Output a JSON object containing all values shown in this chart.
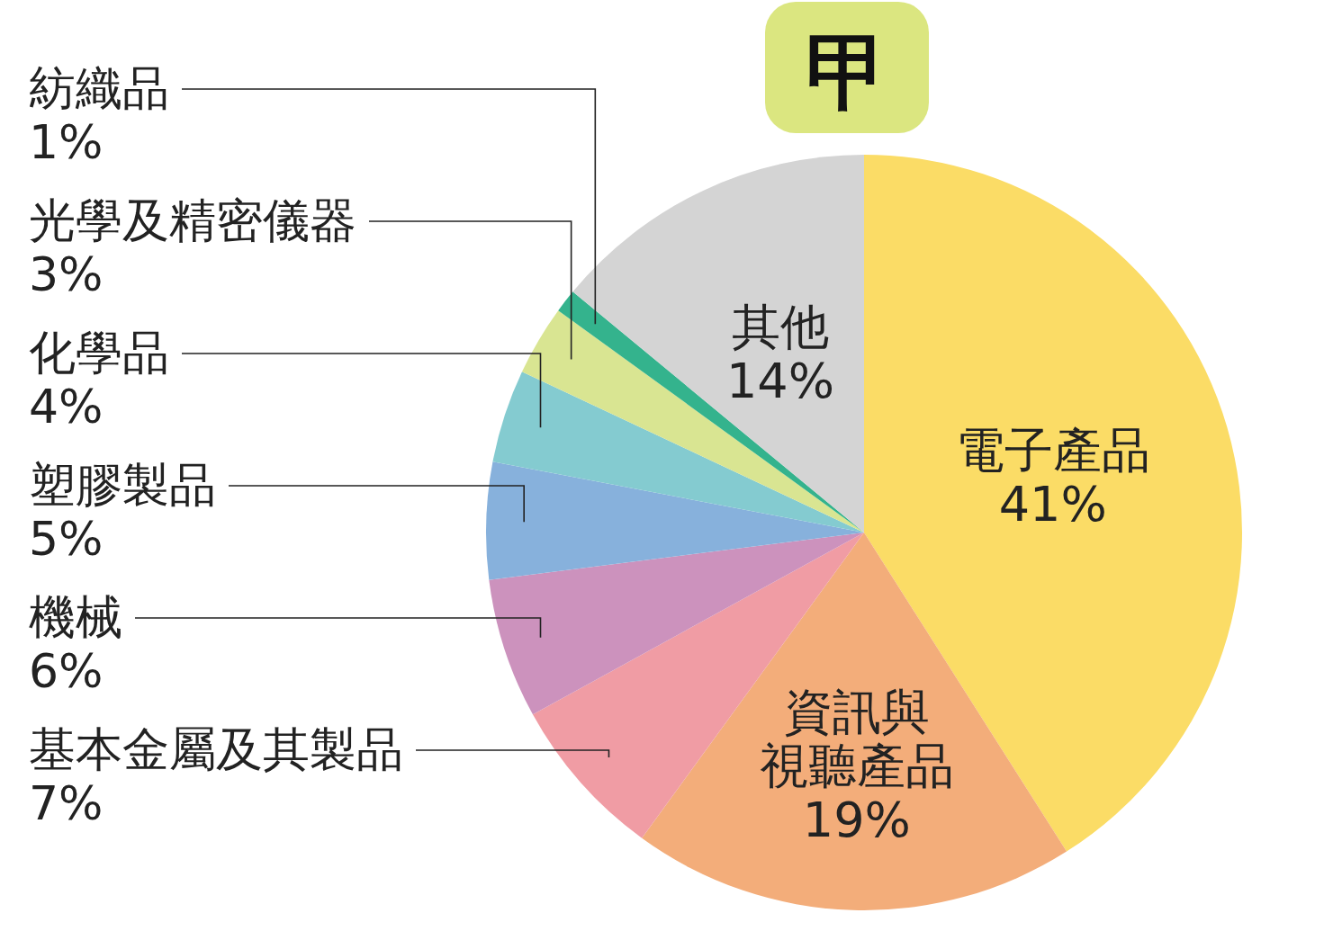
{
  "chart_data": {
    "type": "pie",
    "title": "甲",
    "categories": [
      "電子產品",
      "資訊與視聽產品",
      "基本金屬及其製品",
      "機械",
      "塑膠製品",
      "化學品",
      "光學及精密儀器",
      "紡織品",
      "其他"
    ],
    "values": [
      41,
      19,
      7,
      6,
      5,
      4,
      3,
      1,
      14
    ],
    "value_labels": [
      "41%",
      "19%",
      "7%",
      "6%",
      "5%",
      "4%",
      "3%",
      "1%",
      "14%"
    ],
    "colors": [
      "#fbdc66",
      "#f3ad7a",
      "#f09ca4",
      "#cc92bd",
      "#87b1dc",
      "#84cbd0",
      "#d9e592",
      "#34b38d",
      "#d4d4d4"
    ]
  }
}
